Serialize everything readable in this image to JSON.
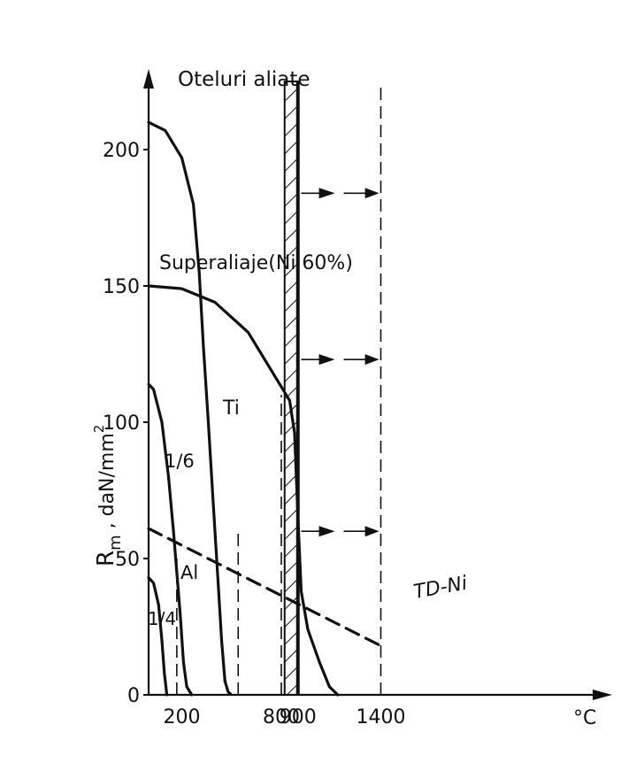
{
  "chart_data": {
    "type": "line",
    "title": "",
    "xlabel": "°C",
    "ylabel": "R_m , daN/mm²",
    "ylabel_main": "R",
    "ylabel_sub": "m",
    "ylabel_rest": " , daN/mm",
    "ylabel_sup": "2",
    "xlim": [
      0,
      1500
    ],
    "ylim": [
      0,
      230
    ],
    "grid": false,
    "x_ticks": [
      {
        "value": 200,
        "label": "200"
      },
      {
        "value": 800,
        "label": "800"
      },
      {
        "value": 900,
        "label": "900"
      },
      {
        "value": 1400,
        "label": "1400"
      }
    ],
    "y_ticks": [
      {
        "value": 0,
        "label": "0"
      },
      {
        "value": 50,
        "label": "50"
      },
      {
        "value": 100,
        "label": "100"
      },
      {
        "value": 150,
        "label": "150"
      },
      {
        "value": 200,
        "label": "200"
      }
    ],
    "series": [
      {
        "name": "Oteluri aliate",
        "style": "solid",
        "points": [
          [
            0,
            210
          ],
          [
            100,
            207
          ],
          [
            200,
            197
          ],
          [
            270,
            180
          ],
          [
            305,
            155
          ],
          [
            330,
            128
          ],
          [
            360,
            100
          ],
          [
            390,
            70
          ],
          [
            420,
            40
          ],
          [
            440,
            20
          ],
          [
            460,
            5
          ]
        ]
      },
      {
        "name": "Oteluri aliate",
        "style": "dashed",
        "points": [
          [
            460,
            5
          ],
          [
            480,
            1
          ],
          [
            500,
            0
          ]
        ]
      },
      {
        "name": "Superaliaje(Ni 60%)",
        "style": "solid",
        "points": [
          [
            0,
            150
          ],
          [
            200,
            149
          ],
          [
            400,
            144
          ],
          [
            600,
            133
          ],
          [
            750,
            118
          ],
          [
            850,
            108
          ],
          [
            880,
            96
          ],
          [
            900,
            65
          ],
          [
            920,
            38
          ],
          [
            960,
            24
          ],
          [
            1030,
            12
          ],
          [
            1090,
            3
          ]
        ]
      },
      {
        "name": "Superaliaje(Ni 60%)",
        "style": "dashed",
        "points": [
          [
            1090,
            3
          ],
          [
            1140,
            0
          ]
        ]
      },
      {
        "name": "Ti",
        "style": "solid",
        "points": [
          [
            0,
            114
          ],
          [
            30,
            112
          ],
          [
            80,
            100
          ],
          [
            120,
            80
          ],
          [
            150,
            60
          ],
          [
            190,
            30
          ],
          [
            210,
            12
          ],
          [
            230,
            3
          ]
        ]
      },
      {
        "name": "Ti",
        "style": "dashed",
        "points": [
          [
            230,
            3
          ],
          [
            260,
            0
          ]
        ]
      },
      {
        "name": "Al",
        "style": "solid",
        "points": [
          [
            0,
            43
          ],
          [
            30,
            41
          ],
          [
            60,
            33
          ],
          [
            80,
            20
          ],
          [
            95,
            8
          ],
          [
            110,
            0
          ]
        ]
      },
      {
        "name": "TD-Ni",
        "style": "dashed",
        "points": [
          [
            0,
            61
          ],
          [
            1400,
            18
          ]
        ]
      }
    ],
    "vertical_lines": [
      {
        "x": 170,
        "style": "dashed",
        "y_from": 0,
        "y_to": 50
      },
      {
        "x": 540,
        "style": "dashed",
        "y_from": 0,
        "y_to": 60
      },
      {
        "x": 800,
        "style": "dashed",
        "y_from": 0,
        "y_to": 110
      },
      {
        "x": 900,
        "style": "solid",
        "y_from": 0,
        "y_to": 225
      },
      {
        "x": 1400,
        "style": "dashed",
        "y_from": 0,
        "y_to": 225
      }
    ],
    "hatched_band": {
      "x_from": 820,
      "x_to": 900,
      "y_from": 0,
      "y_to": 225
    },
    "arrows": [
      {
        "y": 184,
        "x_from": 920,
        "x_to": 1390
      },
      {
        "y": 123,
        "x_from": 920,
        "x_to": 1390
      },
      {
        "y": 60,
        "x_from": 920,
        "x_to": 1390
      }
    ],
    "annotations": [
      {
        "text": "Oteluri aliate"
      },
      {
        "text": "Superaliaje(Ni 60%)"
      },
      {
        "text": "Ti"
      },
      {
        "text": "1/6"
      },
      {
        "text": "Al"
      },
      {
        "text": "1/4"
      },
      {
        "text": "TD-Ni"
      }
    ]
  }
}
